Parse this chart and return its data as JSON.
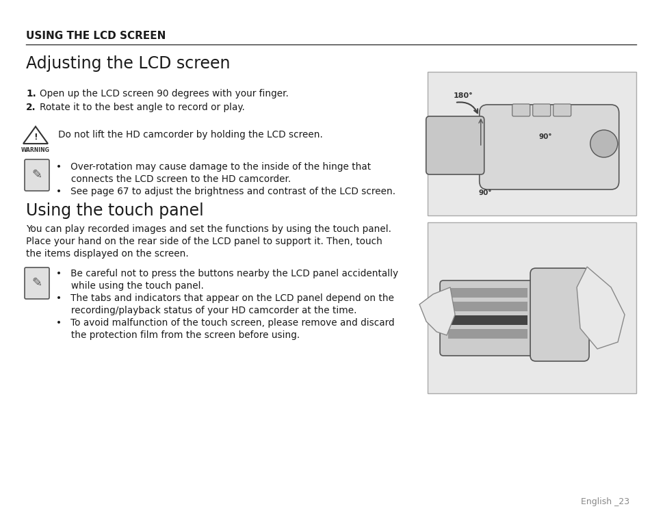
{
  "bg_color": "#ffffff",
  "text_color": "#1a1a1a",
  "dark_gray": "#444444",
  "header_text": "USING THE LCD SCREEN",
  "section1_title": "Adjusting the LCD screen",
  "step1_bold": "1.",
  "step1_rest": "  Open up the LCD screen 90 degrees with your finger.",
  "step2_bold": "2.",
  "step2_rest": "  Rotate it to the best angle to record or play.",
  "warning_text": "Do not lift the HD camcorder by holding the LCD screen.",
  "warning_label": "WARNING",
  "note_b1_l1": "•   Over-rotation may cause damage to the inside of the hinge that",
  "note_b1_l2": "     connects the LCD screen to the HD camcorder.",
  "note_b1_l3": "•   See page 67 to adjust the brightness and contrast of the LCD screen.",
  "section2_title": "Using the touch panel",
  "touch_p1": "You can play recorded images and set the functions by using the touch panel.",
  "touch_p2": "Place your hand on the rear side of the LCD panel to support it. Then, touch",
  "touch_p3": "the items displayed on the screen.",
  "note2_b1_l1": "•   Be careful not to press the buttons nearby the LCD panel accidentally",
  "note2_b1_l2": "     while using the touch panel.",
  "note2_b2_l1": "•   The tabs and indicators that appear on the LCD panel depend on the",
  "note2_b2_l2": "     recording/playback status of your HD camcorder at the time.",
  "note2_b3_l1": "•   To avoid malfunction of the touch screen, please remove and discard",
  "note2_b3_l2": "     the protection film from the screen before using.",
  "footer_text": "English _23",
  "img1_bg": "#e8e8e8",
  "img2_bg": "#e8e8e8",
  "img_border": "#aaaaaa",
  "line_color": "#333333"
}
